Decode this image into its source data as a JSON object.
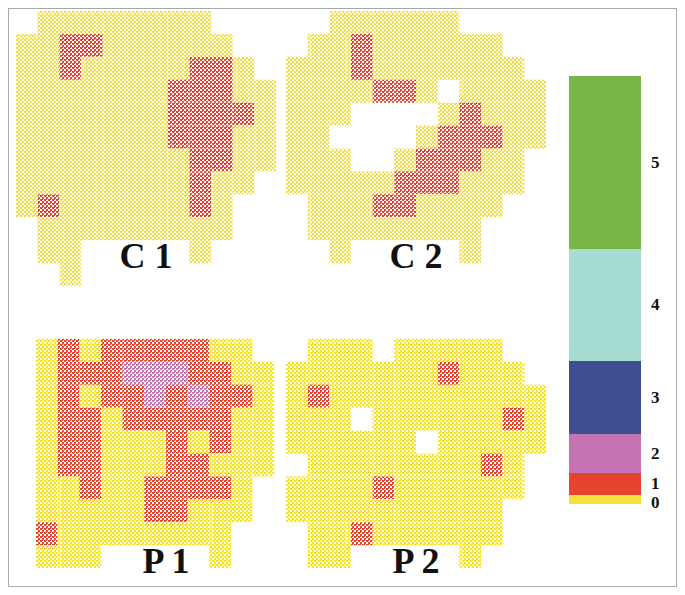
{
  "chart_data": {
    "type": "heatmap",
    "tick_labels": false,
    "colorbar": {
      "levels": [
        0,
        1,
        2,
        3,
        4,
        5
      ],
      "colors": [
        "#f5e13c",
        "#e8432e",
        "#c673b3",
        "#3f4e93",
        "#a7dcd3",
        "#78b746"
      ]
    },
    "panels": [
      {
        "title": "C 1",
        "cells": [
          [
            null,
            0,
            0,
            0,
            0,
            0,
            0,
            0,
            0,
            null,
            null,
            null
          ],
          [
            0,
            0,
            1,
            1,
            0,
            0,
            0,
            0,
            0,
            0,
            null,
            null
          ],
          [
            0,
            0,
            1,
            0,
            0,
            0,
            0,
            0,
            1,
            1,
            0,
            null
          ],
          [
            0,
            0,
            0,
            0,
            0,
            0,
            0,
            1,
            1,
            1,
            0,
            0
          ],
          [
            0,
            0,
            0,
            0,
            0,
            0,
            0,
            1,
            1,
            1,
            1,
            0
          ],
          [
            0,
            0,
            0,
            0,
            0,
            0,
            0,
            1,
            1,
            1,
            0,
            0
          ],
          [
            0,
            0,
            0,
            0,
            0,
            0,
            0,
            0,
            1,
            1,
            0,
            0
          ],
          [
            0,
            0,
            0,
            0,
            0,
            0,
            0,
            0,
            1,
            0,
            0,
            null
          ],
          [
            0,
            1,
            0,
            0,
            0,
            0,
            0,
            0,
            1,
            0,
            null,
            null
          ],
          [
            null,
            0,
            0,
            0,
            0,
            0,
            0,
            0,
            0,
            0,
            null,
            null
          ],
          [
            null,
            0,
            0,
            null,
            null,
            null,
            null,
            null,
            0,
            null,
            null,
            null
          ],
          [
            null,
            null,
            0,
            null,
            null,
            null,
            null,
            null,
            null,
            null,
            null,
            null
          ]
        ]
      },
      {
        "title": "C 2",
        "cells": [
          [
            null,
            null,
            0,
            0,
            0,
            0,
            0,
            0,
            null,
            null,
            null,
            null
          ],
          [
            null,
            0,
            0,
            1,
            0,
            0,
            0,
            0,
            0,
            0,
            null,
            null
          ],
          [
            0,
            0,
            0,
            1,
            0,
            0,
            0,
            0,
            0,
            0,
            0,
            null
          ],
          [
            0,
            0,
            0,
            0,
            1,
            1,
            0,
            null,
            0,
            0,
            0,
            0
          ],
          [
            0,
            0,
            0,
            null,
            null,
            null,
            null,
            0,
            1,
            0,
            0,
            0
          ],
          [
            0,
            0,
            null,
            null,
            null,
            null,
            0,
            1,
            1,
            1,
            0,
            0
          ],
          [
            0,
            0,
            0,
            null,
            null,
            0,
            1,
            1,
            1,
            0,
            0,
            null
          ],
          [
            0,
            0,
            0,
            0,
            0,
            1,
            1,
            1,
            0,
            0,
            0,
            null
          ],
          [
            null,
            0,
            0,
            0,
            1,
            1,
            0,
            0,
            0,
            0,
            null,
            null
          ],
          [
            null,
            0,
            0,
            0,
            0,
            0,
            0,
            0,
            0,
            null,
            null,
            null
          ],
          [
            null,
            null,
            0,
            null,
            null,
            null,
            null,
            null,
            0,
            null,
            null,
            null
          ],
          [
            null,
            null,
            null,
            null,
            null,
            null,
            null,
            null,
            null,
            null,
            null,
            null
          ]
        ]
      },
      {
        "title": "P 1",
        "cells": [
          [
            null,
            null,
            null,
            null,
            null,
            null,
            null,
            null,
            null,
            null,
            null,
            null
          ],
          [
            0,
            1,
            0,
            1,
            1,
            1,
            1,
            1,
            0,
            0,
            null,
            null
          ],
          [
            0,
            1,
            1,
            1,
            2,
            2,
            2,
            1,
            1,
            0,
            0,
            null
          ],
          [
            0,
            1,
            0,
            1,
            1,
            2,
            1,
            2,
            1,
            1,
            0,
            null
          ],
          [
            0,
            1,
            1,
            0,
            1,
            1,
            1,
            1,
            1,
            0,
            0,
            null
          ],
          [
            0,
            1,
            1,
            0,
            0,
            0,
            1,
            0,
            1,
            0,
            0,
            null
          ],
          [
            0,
            1,
            1,
            0,
            0,
            0,
            1,
            1,
            0,
            0,
            0,
            null
          ],
          [
            0,
            0,
            1,
            0,
            0,
            1,
            1,
            1,
            1,
            0,
            null,
            null
          ],
          [
            0,
            0,
            0,
            0,
            0,
            1,
            1,
            0,
            0,
            0,
            null,
            null
          ],
          [
            1,
            0,
            0,
            0,
            0,
            0,
            0,
            0,
            0,
            null,
            null,
            null
          ],
          [
            0,
            0,
            0,
            null,
            null,
            null,
            null,
            null,
            0,
            null,
            null,
            null
          ],
          [
            null,
            null,
            null,
            null,
            null,
            null,
            null,
            null,
            null,
            null,
            null,
            null
          ]
        ]
      },
      {
        "title": "P 2",
        "cells": [
          [
            null,
            null,
            null,
            null,
            null,
            null,
            null,
            null,
            null,
            null,
            null,
            null
          ],
          [
            null,
            0,
            0,
            0,
            null,
            0,
            0,
            0,
            0,
            0,
            null,
            null
          ],
          [
            0,
            0,
            0,
            0,
            0,
            0,
            0,
            1,
            0,
            0,
            0,
            null
          ],
          [
            0,
            1,
            0,
            0,
            0,
            0,
            0,
            0,
            0,
            0,
            0,
            0
          ],
          [
            0,
            0,
            0,
            null,
            0,
            0,
            0,
            0,
            0,
            0,
            1,
            0
          ],
          [
            0,
            0,
            0,
            0,
            0,
            0,
            null,
            0,
            0,
            0,
            0,
            0
          ],
          [
            null,
            0,
            0,
            0,
            0,
            0,
            0,
            0,
            0,
            1,
            0,
            null
          ],
          [
            0,
            0,
            0,
            0,
            1,
            0,
            0,
            0,
            0,
            0,
            0,
            null
          ],
          [
            0,
            0,
            0,
            0,
            0,
            0,
            0,
            0,
            0,
            0,
            null,
            null
          ],
          [
            null,
            0,
            0,
            1,
            0,
            0,
            0,
            0,
            0,
            0,
            null,
            null
          ],
          [
            null,
            0,
            0,
            null,
            null,
            null,
            null,
            null,
            0,
            null,
            null,
            null
          ],
          [
            null,
            null,
            null,
            null,
            null,
            null,
            null,
            null,
            null,
            null,
            null,
            null
          ]
        ]
      }
    ]
  }
}
